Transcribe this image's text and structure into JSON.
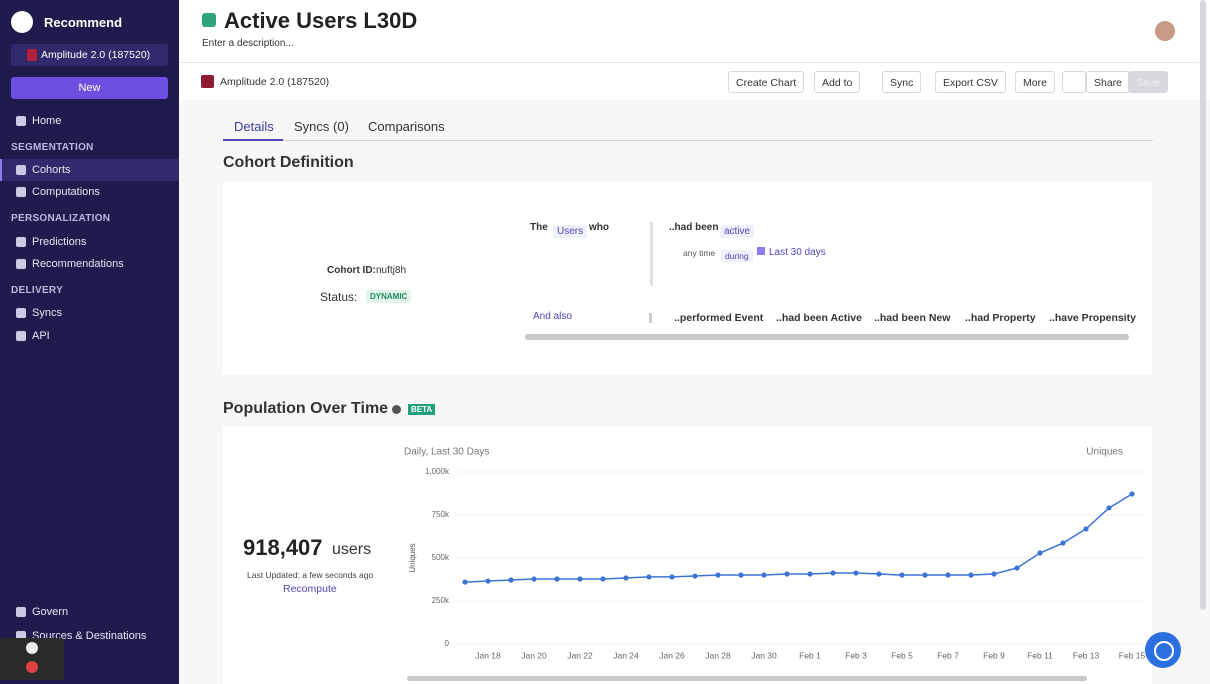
{
  "sidebar": {
    "workspace": "Recommend",
    "org": "Amplitude 2.0 (187520)",
    "new_button": "New",
    "home": "Home",
    "sections": [
      {
        "title": "SEGMENTATION",
        "items": [
          "Cohorts",
          "Computations"
        ]
      },
      {
        "title": "PERSONALIZATION",
        "items": [
          "Predictions",
          "Recommendations"
        ]
      },
      {
        "title": "DELIVERY",
        "items": [
          "Syncs",
          "API"
        ]
      }
    ],
    "footer": [
      "Govern",
      "Sources & Destinations"
    ]
  },
  "header": {
    "title": "Active Users L30D",
    "description": "Enter a description...",
    "org": "Amplitude 2.0 (187520)",
    "buttons": [
      "Create Chart",
      "Add to",
      "Sync",
      "Export CSV",
      "More",
      "Share",
      "Save"
    ]
  },
  "tabs": [
    "Details",
    "Syncs (0)",
    "Comparisons"
  ],
  "cohort_definition": {
    "title": "Cohort Definition",
    "cohort_id_label": "Cohort ID:",
    "cohort_id": "nuftj8h",
    "status_label": "Status:",
    "status": "DYNAMIC",
    "rule": {
      "the": "The",
      "subject": "Users",
      "who": "who",
      "condition": "..had been",
      "state": "active",
      "time": "any time",
      "during": "during",
      "range": "Last 30 days"
    },
    "and_also": "And also",
    "options": [
      "..performed Event",
      "..had been Active",
      "..had been New",
      "..had Property",
      "..have Propensity"
    ]
  },
  "population": {
    "badge": "BETA",
    "count": "918,407",
    "unit": "users",
    "updated": "Last Updated: a few seconds ago",
    "recompute": "Recompute"
  },
  "chart_data": {
    "type": "line",
    "title": "Population Over Time",
    "subtitle": "Daily, Last 30 Days",
    "y_label": "Uniques",
    "categories": [
      null,
      "Jan 18",
      null,
      "Jan 20",
      null,
      "Jan 22",
      null,
      "Jan 24",
      null,
      "Jan 26",
      null,
      "Jan 28",
      null,
      "Jan 30",
      null,
      "Feb 1",
      null,
      "Feb 3",
      null,
      "Feb 5",
      null,
      "Feb 7",
      null,
      "Feb 9",
      null,
      "Feb 11",
      null,
      "Feb 13",
      null,
      "Feb 15"
    ],
    "series": [
      {
        "name": "Uniques",
        "color": "#3b74d4",
        "values": [
          360000,
          366000,
          372000,
          378000,
          378000,
          378000,
          378000,
          384000,
          390000,
          390000,
          395000,
          401000,
          401000,
          401000,
          407000,
          407000,
          413000,
          413000,
          407000,
          401000,
          401000,
          401000,
          401000,
          407000,
          442000,
          529000,
          587000,
          669000,
          791000,
          872000
        ]
      }
    ],
    "ylim": [
      0,
      1000000
    ],
    "yticks": [
      0,
      {
        "value": 250000,
        "label": "250k"
      },
      {
        "value": 500000,
        "label": "500k"
      },
      {
        "value": 750000,
        "label": "750k"
      },
      {
        "value": 1000000,
        "label": "1,000k"
      }
    ],
    "grid": true
  }
}
